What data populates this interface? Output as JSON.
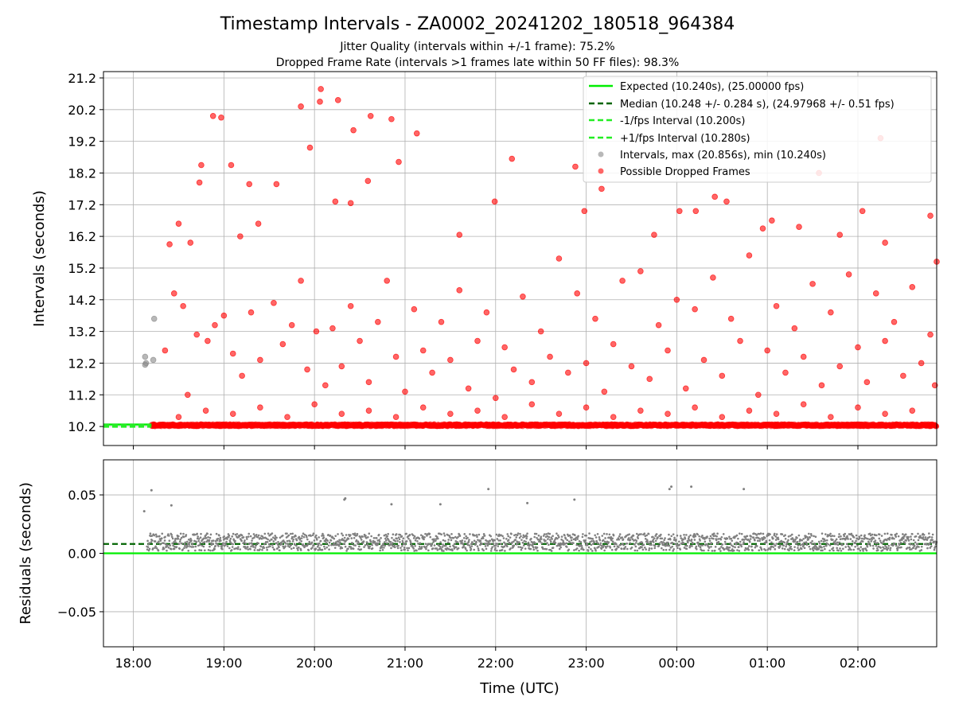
{
  "figure": {
    "title": "Timestamp Intervals - ZA0002_20241202_180518_964384",
    "subtitle_1": "Jitter Quality (intervals within +/-1 frame): 75.2%",
    "subtitle_2": "Dropped Frame Rate (intervals >1 frames late within 50 FF files): 98.3%"
  },
  "chart_data": [
    {
      "type": "scatter",
      "panel": "intervals",
      "xlabel": "",
      "ylabel": "Intervals (seconds)",
      "x_unit": "hours since 18:00 UTC (axis shows clock time)",
      "xlim": [
        17.67,
        26.87
      ],
      "ylim": [
        9.6,
        21.4
      ],
      "yticks": [
        "10.2",
        "11.2",
        "12.2",
        "13.2",
        "14.2",
        "15.2",
        "16.2",
        "17.2",
        "18.2",
        "19.2",
        "20.2",
        "21.2"
      ],
      "grid": true,
      "legend_position": "top-right",
      "lines": [
        {
          "name": "Expected (10.240s), (25.00000 fps)",
          "y": 10.24,
          "color": "#00ee00",
          "style": "solid"
        },
        {
          "name": "Median (10.248 +/- 0.284 s), (24.97968 +/- 0.51 fps)",
          "y": 10.248,
          "color": "#006400",
          "style": "dashed"
        },
        {
          "name": "-1/fps Interval (10.200s)",
          "y": 10.2,
          "color": "#22ee22",
          "style": "dashed"
        },
        {
          "name": "+1/fps Interval (10.280s)",
          "y": 10.28,
          "color": "#22ee22",
          "style": "dashed"
        }
      ],
      "series": [
        {
          "name": "Intervals, max (20.856s), min (10.240s)",
          "color": "#888888",
          "points": [
            [
              18.13,
              12.4
            ],
            [
              18.14,
              12.2
            ],
            [
              18.13,
              12.15
            ],
            [
              18.22,
              12.3
            ],
            [
              18.23,
              13.6
            ]
          ]
        },
        {
          "name": "Possible Dropped Frames",
          "color": "#ff0000",
          "points": [
            [
              18.4,
              15.95
            ],
            [
              18.5,
              16.6
            ],
            [
              18.63,
              16.0
            ],
            [
              18.73,
              17.9
            ],
            [
              18.75,
              18.45
            ],
            [
              18.88,
              20.0
            ],
            [
              18.97,
              19.95
            ],
            [
              19.08,
              18.45
            ],
            [
              19.18,
              16.2
            ],
            [
              19.28,
              17.85
            ],
            [
              19.38,
              16.6
            ],
            [
              19.58,
              17.85
            ],
            [
              19.85,
              20.3
            ],
            [
              19.95,
              19.0
            ],
            [
              20.07,
              20.85
            ],
            [
              20.06,
              20.45
            ],
            [
              20.26,
              20.5
            ],
            [
              20.23,
              17.3
            ],
            [
              20.4,
              17.25
            ],
            [
              20.43,
              19.55
            ],
            [
              20.62,
              20.0
            ],
            [
              20.59,
              17.95
            ],
            [
              20.85,
              19.9
            ],
            [
              20.93,
              18.55
            ],
            [
              21.13,
              19.45
            ],
            [
              21.6,
              16.25
            ],
            [
              21.99,
              17.3
            ],
            [
              22.18,
              18.65
            ],
            [
              22.88,
              18.4
            ],
            [
              22.98,
              17.0
            ],
            [
              23.17,
              17.7
            ],
            [
              23.75,
              16.25
            ],
            [
              24.03,
              17.0
            ],
            [
              24.21,
              17.0
            ],
            [
              24.42,
              17.45
            ],
            [
              24.55,
              17.3
            ],
            [
              24.95,
              16.45
            ],
            [
              25.05,
              16.7
            ],
            [
              25.35,
              16.5
            ],
            [
              25.57,
              18.2
            ],
            [
              25.8,
              16.25
            ],
            [
              26.05,
              17.0
            ],
            [
              26.25,
              19.3
            ],
            [
              26.3,
              16.0
            ],
            [
              26.8,
              16.85
            ],
            [
              26.87,
              15.4
            ],
            [
              18.35,
              12.6
            ],
            [
              18.45,
              14.4
            ],
            [
              18.55,
              14.0
            ],
            [
              18.6,
              11.2
            ],
            [
              18.7,
              13.1
            ],
            [
              18.82,
              12.9
            ],
            [
              18.9,
              13.4
            ],
            [
              19.0,
              13.7
            ],
            [
              19.1,
              12.5
            ],
            [
              19.2,
              11.8
            ],
            [
              19.3,
              13.8
            ],
            [
              19.4,
              12.3
            ],
            [
              19.55,
              14.1
            ],
            [
              19.65,
              12.8
            ],
            [
              19.75,
              13.4
            ],
            [
              19.85,
              14.8
            ],
            [
              19.92,
              12.0
            ],
            [
              20.02,
              13.2
            ],
            [
              20.12,
              11.5
            ],
            [
              20.2,
              13.3
            ],
            [
              20.3,
              12.1
            ],
            [
              20.4,
              14.0
            ],
            [
              20.5,
              12.9
            ],
            [
              20.6,
              11.6
            ],
            [
              20.7,
              13.5
            ],
            [
              20.8,
              14.8
            ],
            [
              20.9,
              12.4
            ],
            [
              21.0,
              11.3
            ],
            [
              21.1,
              13.9
            ],
            [
              21.2,
              12.6
            ],
            [
              21.3,
              11.9
            ],
            [
              21.4,
              13.5
            ],
            [
              21.5,
              12.3
            ],
            [
              21.6,
              14.5
            ],
            [
              21.7,
              11.4
            ],
            [
              21.8,
              12.9
            ],
            [
              21.9,
              13.8
            ],
            [
              22.0,
              11.1
            ],
            [
              22.1,
              12.7
            ],
            [
              22.2,
              12.0
            ],
            [
              22.3,
              14.3
            ],
            [
              22.4,
              11.6
            ],
            [
              22.5,
              13.2
            ],
            [
              22.6,
              12.4
            ],
            [
              22.7,
              15.5
            ],
            [
              22.8,
              11.9
            ],
            [
              22.9,
              14.4
            ],
            [
              23.0,
              12.2
            ],
            [
              23.1,
              13.6
            ],
            [
              23.2,
              11.3
            ],
            [
              23.3,
              12.8
            ],
            [
              23.4,
              14.8
            ],
            [
              23.5,
              12.1
            ],
            [
              23.6,
              15.1
            ],
            [
              23.7,
              11.7
            ],
            [
              23.8,
              13.4
            ],
            [
              23.9,
              12.6
            ],
            [
              24.0,
              14.2
            ],
            [
              24.1,
              11.4
            ],
            [
              24.2,
              13.9
            ],
            [
              24.3,
              12.3
            ],
            [
              24.4,
              14.9
            ],
            [
              24.5,
              11.8
            ],
            [
              24.6,
              13.6
            ],
            [
              24.7,
              12.9
            ],
            [
              24.8,
              15.6
            ],
            [
              24.9,
              11.2
            ],
            [
              25.0,
              12.6
            ],
            [
              25.1,
              14.0
            ],
            [
              25.2,
              11.9
            ],
            [
              25.3,
              13.3
            ],
            [
              25.4,
              12.4
            ],
            [
              25.5,
              14.7
            ],
            [
              25.6,
              11.5
            ],
            [
              25.7,
              13.8
            ],
            [
              25.8,
              12.1
            ],
            [
              25.9,
              15.0
            ],
            [
              26.0,
              12.7
            ],
            [
              26.1,
              11.6
            ],
            [
              26.2,
              14.4
            ],
            [
              26.3,
              12.9
            ],
            [
              26.4,
              13.5
            ],
            [
              26.5,
              11.8
            ],
            [
              26.6,
              14.6
            ],
            [
              26.7,
              12.2
            ],
            [
              26.8,
              13.1
            ],
            [
              26.85,
              11.5
            ],
            [
              18.5,
              10.5
            ],
            [
              18.8,
              10.7
            ],
            [
              19.1,
              10.6
            ],
            [
              19.4,
              10.8
            ],
            [
              19.7,
              10.5
            ],
            [
              20.0,
              10.9
            ],
            [
              20.3,
              10.6
            ],
            [
              20.6,
              10.7
            ],
            [
              20.9,
              10.5
            ],
            [
              21.2,
              10.8
            ],
            [
              21.5,
              10.6
            ],
            [
              21.8,
              10.7
            ],
            [
              22.1,
              10.5
            ],
            [
              22.4,
              10.9
            ],
            [
              22.7,
              10.6
            ],
            [
              23.0,
              10.8
            ],
            [
              23.3,
              10.5
            ],
            [
              23.6,
              10.7
            ],
            [
              23.9,
              10.6
            ],
            [
              24.2,
              10.8
            ],
            [
              24.5,
              10.5
            ],
            [
              24.8,
              10.7
            ],
            [
              25.1,
              10.6
            ],
            [
              25.4,
              10.9
            ],
            [
              25.7,
              10.5
            ],
            [
              26.0,
              10.8
            ],
            [
              26.3,
              10.6
            ],
            [
              26.6,
              10.7
            ]
          ]
        }
      ],
      "dense_band": {
        "name": "Possible Dropped Frames",
        "x_range": [
          18.2,
          26.87
        ],
        "y": 10.24,
        "color": "#ff0000"
      }
    },
    {
      "type": "scatter",
      "panel": "residuals",
      "xlabel": "Time (UTC)",
      "ylabel": "Residuals (seconds)",
      "x_unit": "hours since 18:00 UTC (axis shows clock time)",
      "xlim": [
        17.67,
        26.87
      ],
      "ylim": [
        -0.08,
        0.08
      ],
      "yticks": [
        "0.05",
        "0.00",
        "−0.05"
      ],
      "xticks": [
        "18:00",
        "19:00",
        "20:00",
        "21:00",
        "22:00",
        "23:00",
        "00:00",
        "01:00",
        "02:00"
      ],
      "grid": true,
      "lines": [
        {
          "y": 0.0,
          "color": "#00ee00",
          "style": "solid"
        },
        {
          "y": 0.008,
          "color": "#006400",
          "style": "dashed"
        }
      ],
      "series": [
        {
          "color": "#808080",
          "points": [
            [
              18.12,
              0.036
            ],
            [
              18.2,
              0.054
            ],
            [
              18.42,
              0.041
            ],
            [
              20.33,
              0.046
            ],
            [
              20.34,
              0.047
            ],
            [
              20.85,
              0.042
            ],
            [
              21.39,
              0.042
            ],
            [
              21.92,
              0.055
            ],
            [
              22.35,
              0.043
            ],
            [
              22.87,
              0.046
            ],
            [
              23.92,
              0.055
            ],
            [
              23.94,
              0.057
            ],
            [
              24.16,
              0.057
            ],
            [
              24.74,
              0.055
            ]
          ]
        }
      ],
      "dense_band": {
        "x_range": [
          18.15,
          26.87
        ],
        "y_range": [
          0.002,
          0.017
        ],
        "color": "#808080"
      }
    }
  ]
}
